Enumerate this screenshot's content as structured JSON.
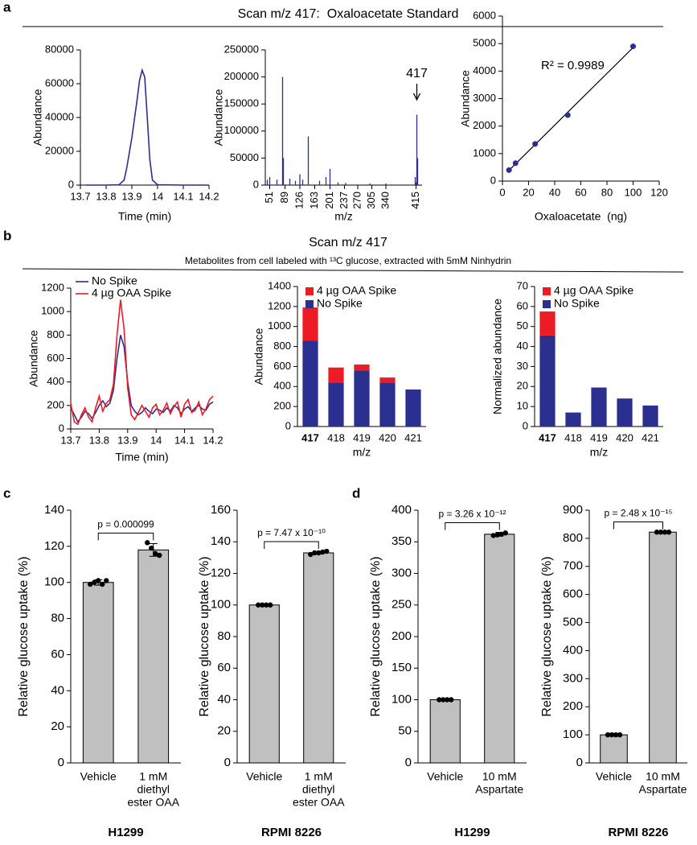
{
  "panels": [
    {
      "label": "a",
      "title": "Scan m/z 417:  Oxaloacetate Standard"
    },
    {
      "label": "b",
      "title": "Scan m/z 417",
      "subtitle": "Metabolites from cell labeled with ¹³C glucose, extracted with 5mM Ninhydrin"
    },
    {
      "label": "c"
    },
    {
      "label": "d"
    }
  ],
  "chart_data": [
    {
      "type": "line",
      "xlabel": "Time (min)",
      "ylabel": "Abundance",
      "color": "#2b2f8f",
      "x": [
        13.72,
        13.8,
        13.85,
        13.87,
        13.88,
        13.9,
        13.92,
        13.93,
        13.94,
        13.95,
        13.96,
        13.97,
        13.98,
        14,
        14.1,
        14.2
      ],
      "values": [
        0,
        0,
        200,
        3000,
        10000,
        28000,
        50000,
        62000,
        68000,
        64000,
        40000,
        15000,
        3000,
        200,
        0,
        0
      ],
      "xlim": [
        13.7,
        14.2
      ],
      "xticks": [
        13.7,
        13.8,
        13.9,
        14,
        14.1,
        14.2
      ],
      "ylim": [
        0,
        80000
      ],
      "yticks": [
        0,
        20000,
        40000,
        60000,
        80000
      ]
    },
    {
      "type": "spectrum",
      "xlabel": "m/z",
      "ylabel": "Abundance",
      "color": "#2b2f8f",
      "annotation": "417",
      "x": [
        45,
        51,
        69,
        83,
        85,
        101,
        115,
        126,
        133,
        147,
        175,
        191,
        201,
        221,
        240,
        300,
        340,
        413,
        415,
        417,
        419
      ],
      "values": [
        10000,
        15000,
        10000,
        200000,
        50000,
        12000,
        8000,
        20000,
        10000,
        90000,
        8000,
        15000,
        30000,
        5000,
        4000,
        3000,
        3000,
        15000,
        5000,
        130000,
        50000
      ],
      "xlim": [
        40,
        430
      ],
      "xticks": [
        51,
        89,
        126,
        163,
        201,
        237,
        270,
        305,
        340,
        415
      ],
      "ylim": [
        0,
        250000
      ],
      "yticks": [
        0,
        50000,
        100000,
        150000,
        200000,
        250000
      ]
    },
    {
      "type": "scatter",
      "xlabel": "Oxaloacetate  (ng)",
      "ylabel": "Abundance",
      "color": "#2b2f8f",
      "annotation": "R² = 0.9989",
      "trendline": true,
      "x": [
        5,
        10,
        25,
        50,
        100
      ],
      "values": [
        400,
        650,
        1350,
        2400,
        4900
      ],
      "xlim": [
        0,
        120
      ],
      "xticks": [
        0,
        20,
        40,
        60,
        80,
        100,
        120
      ],
      "ylim": [
        0,
        6000
      ],
      "yticks": [
        0,
        1000,
        2000,
        3000,
        4000,
        5000,
        6000
      ]
    },
    {
      "type": "line",
      "xlabel": "Time (min)",
      "ylabel": "Abundance",
      "legend": "top-left",
      "x": [
        13.7,
        13.7125,
        13.725,
        13.7375,
        13.75,
        13.7625,
        13.775,
        13.7875,
        13.8,
        13.8125,
        13.825,
        13.8375,
        13.85,
        13.8625,
        13.875,
        13.8875,
        13.9,
        13.9125,
        13.925,
        13.9375,
        13.95,
        13.9625,
        13.975,
        13.9875,
        14,
        14.0125,
        14.025,
        14.0375,
        14.05,
        14.0625,
        14.075,
        14.0875,
        14.1,
        14.1125,
        14.125,
        14.1375,
        14.15,
        14.1625,
        14.175,
        14.1875,
        14.2
      ],
      "series": [
        {
          "name": "No Spike",
          "color": "#2b2f8f",
          "values": [
            180,
            120,
            60,
            100,
            150,
            130,
            90,
            140,
            200,
            240,
            190,
            220,
            330,
            600,
            800,
            700,
            400,
            200,
            150,
            120,
            140,
            180,
            150,
            130,
            170,
            160,
            140,
            180,
            150,
            200,
            180,
            130,
            170,
            190,
            150,
            180,
            200,
            170,
            160,
            210,
            230
          ]
        },
        {
          "name": "4 µg OAA Spike",
          "color": "#ed1c24",
          "values": [
            220,
            60,
            40,
            120,
            180,
            100,
            60,
            180,
            280,
            150,
            220,
            250,
            380,
            800,
            1100,
            850,
            350,
            120,
            80,
            140,
            200,
            150,
            100,
            180,
            210,
            120,
            160,
            220,
            130,
            190,
            230,
            100,
            210,
            250,
            140,
            160,
            230,
            120,
            170,
            250,
            280
          ]
        }
      ],
      "xlim": [
        13.7,
        14.2
      ],
      "xticks": [
        13.7,
        13.8,
        13.9,
        14,
        14.1,
        14.2
      ],
      "ylim": [
        0,
        1200
      ],
      "yticks": [
        0,
        200,
        400,
        600,
        800,
        1000,
        1200
      ]
    },
    {
      "type": "bar",
      "stacked": true,
      "xlabel": "m/z",
      "ylabel": "Abundance",
      "legend": "top-left",
      "bold_category_index": 0,
      "categories": [
        "417",
        "418",
        "419",
        "420",
        "421"
      ],
      "series": [
        {
          "name": "No Spike",
          "color": "#2b2f8f",
          "values": [
            860,
            440,
            560,
            440,
            370
          ]
        },
        {
          "name": "4 µg OAA Spike",
          "color": "#ed1c24",
          "values": [
            330,
            150,
            60,
            50,
            0
          ]
        }
      ],
      "ylim": [
        0,
        1400
      ],
      "yticks": [
        0,
        200,
        400,
        600,
        800,
        1000,
        1200,
        1400
      ]
    },
    {
      "type": "bar",
      "stacked": true,
      "xlabel": "m/z",
      "ylabel": "Normalized abundance",
      "legend": "top-left",
      "bold_category_index": 0,
      "categories": [
        "417",
        "418",
        "419",
        "420",
        "421"
      ],
      "series": [
        {
          "name": "No Spike",
          "color": "#2b2f8f",
          "values": [
            45.5,
            7,
            19.5,
            14,
            10.5
          ]
        },
        {
          "name": "4 µg OAA Spike",
          "color": "#ed1c24",
          "values": [
            12,
            0,
            0,
            0,
            0
          ]
        }
      ],
      "ylim": [
        0,
        70
      ],
      "yticks": [
        0,
        10,
        20,
        30,
        40,
        50,
        60,
        70
      ]
    },
    {
      "type": "bar",
      "ylabel": "Relative glucose uptake (%)",
      "color": "#c0c0c0",
      "cell_line": "H1299",
      "annotation": "p = 0.000099",
      "categories": [
        [
          "Vehicle"
        ],
        [
          "1 mM",
          "diethyl",
          "ester OAA"
        ]
      ],
      "values": [
        100,
        118
      ],
      "errors": [
        1.5,
        3.5
      ],
      "points": [
        [
          99,
          100,
          101,
          99,
          101
        ],
        [
          122,
          119,
          116,
          115
        ]
      ],
      "ylim": [
        0,
        140
      ],
      "yticks": [
        0,
        20,
        40,
        60,
        80,
        100,
        120,
        140
      ]
    },
    {
      "type": "bar",
      "ylabel": "Relative glucose uptake (%)",
      "color": "#c0c0c0",
      "cell_line": "RPMI 8226",
      "annotation": "p = 7.47 x 10⁻¹⁰",
      "categories": [
        [
          "Vehicle"
        ],
        [
          "1 mM",
          "diethyl",
          "ester OAA"
        ]
      ],
      "values": [
        100,
        133
      ],
      "errors": [
        0.3,
        0.8
      ],
      "points": [
        [
          100,
          100,
          100,
          100
        ],
        [
          132,
          133,
          133,
          133.5,
          134
        ]
      ],
      "ylim": [
        0,
        160
      ],
      "yticks": [
        0,
        20,
        40,
        60,
        80,
        100,
        120,
        140,
        160
      ]
    },
    {
      "type": "bar",
      "ylabel": "Relative glucose uptake (%)",
      "color": "#c0c0c0",
      "cell_line": "H1299",
      "annotation": "p = 3.26 x 10⁻¹²",
      "categories": [
        [
          "Vehicle"
        ],
        [
          "10 mM",
          "Aspartate"
        ]
      ],
      "values": [
        100,
        362
      ],
      "errors": [
        0.5,
        3
      ],
      "points": [
        [
          100,
          100,
          100,
          100
        ],
        [
          360,
          361,
          362,
          364
        ]
      ],
      "ylim": [
        0,
        400
      ],
      "yticks": [
        0,
        50,
        100,
        150,
        200,
        250,
        300,
        350,
        400
      ]
    },
    {
      "type": "bar",
      "ylabel": "Relative glucose uptake (%)",
      "color": "#c0c0c0",
      "cell_line": "RPMI 8226",
      "annotation": "p = 2.48 x 10⁻¹⁵",
      "categories": [
        [
          "Vehicle"
        ],
        [
          "10 mM",
          "Aspartate"
        ]
      ],
      "values": [
        100,
        822
      ],
      "errors": [
        1,
        2
      ],
      "points": [
        [
          100,
          100,
          100,
          100
        ],
        [
          822,
          822,
          822,
          822
        ]
      ],
      "ylim": [
        0,
        900
      ],
      "yticks": [
        0,
        100,
        200,
        300,
        400,
        500,
        600,
        700,
        800,
        900
      ]
    }
  ]
}
